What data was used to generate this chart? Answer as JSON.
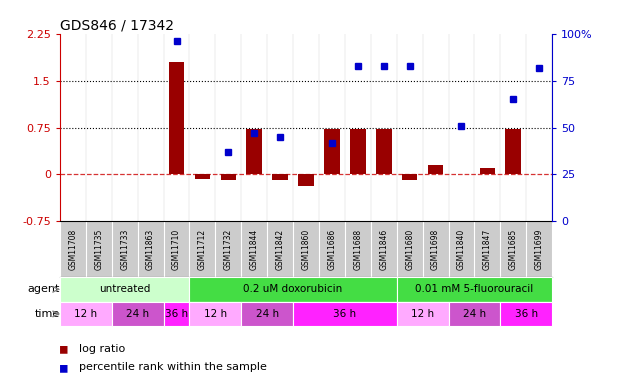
{
  "title": "GDS846 / 17342",
  "samples": [
    "GSM11708",
    "GSM11735",
    "GSM11733",
    "GSM11863",
    "GSM11710",
    "GSM11712",
    "GSM11732",
    "GSM11844",
    "GSM11842",
    "GSM11860",
    "GSM11686",
    "GSM11688",
    "GSM11846",
    "GSM11680",
    "GSM11698",
    "GSM11840",
    "GSM11847",
    "GSM11685",
    "GSM11699"
  ],
  "log_ratio": [
    0.0,
    0.0,
    0.0,
    0.0,
    1.8,
    -0.08,
    -0.09,
    0.72,
    -0.09,
    -0.19,
    0.72,
    0.72,
    0.72,
    -0.09,
    0.15,
    0.0,
    0.1,
    0.72,
    0.0
  ],
  "pct_rank": [
    null,
    null,
    null,
    null,
    96,
    null,
    37,
    47,
    45,
    null,
    42,
    83,
    83,
    83,
    null,
    51,
    null,
    65,
    82
  ],
  "agent_groups": [
    {
      "label": "untreated",
      "start": 0,
      "end": 5,
      "color": "#ccffcc"
    },
    {
      "label": "0.2 uM doxorubicin",
      "start": 5,
      "end": 13,
      "color": "#44dd44"
    },
    {
      "label": "0.01 mM 5-fluorouracil",
      "start": 13,
      "end": 19,
      "color": "#44dd44"
    }
  ],
  "time_groups": [
    {
      "label": "12 h",
      "start": 0,
      "end": 2,
      "color": "#ffaaff"
    },
    {
      "label": "24 h",
      "start": 2,
      "end": 4,
      "color": "#cc55cc"
    },
    {
      "label": "36 h",
      "start": 4,
      "end": 5,
      "color": "#ff22ff"
    },
    {
      "label": "12 h",
      "start": 5,
      "end": 7,
      "color": "#ffaaff"
    },
    {
      "label": "24 h",
      "start": 7,
      "end": 9,
      "color": "#cc55cc"
    },
    {
      "label": "36 h",
      "start": 9,
      "end": 13,
      "color": "#ff22ff"
    },
    {
      "label": "12 h",
      "start": 13,
      "end": 15,
      "color": "#ffaaff"
    },
    {
      "label": "24 h",
      "start": 15,
      "end": 17,
      "color": "#cc55cc"
    },
    {
      "label": "36 h",
      "start": 17,
      "end": 19,
      "color": "#ff22ff"
    }
  ],
  "bar_color": "#990000",
  "dot_color": "#0000cc",
  "ylim_left": [
    -0.75,
    2.25
  ],
  "ylim_right": [
    0,
    100
  ],
  "yticks_left": [
    -0.75,
    0,
    0.75,
    1.5,
    2.25
  ],
  "yticks_right": [
    0,
    25,
    50,
    75,
    100
  ],
  "label_bg_color": "#cccccc",
  "grid_color": "#888888"
}
